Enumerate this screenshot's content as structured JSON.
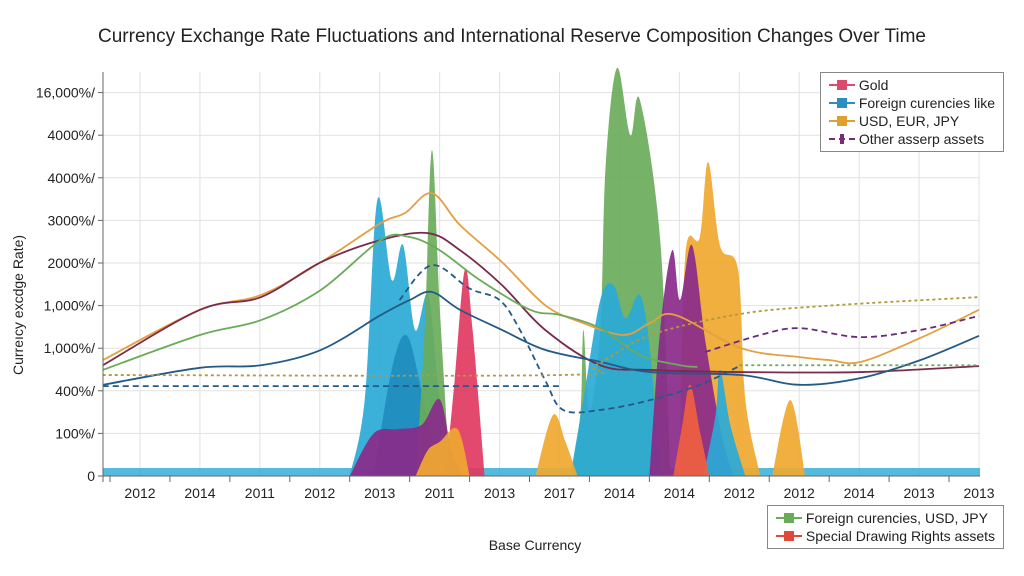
{
  "chart_data": {
    "type": "area",
    "title": "Currency Exchange Rate Fluctuations and International Reserve Composition Changes Over Time",
    "xlabel": "Base Currency",
    "ylabel": "Curreıcy excdge Rate)",
    "x_tick_labels": [
      "2012",
      "2014",
      "2011",
      "2012",
      "2013",
      "2011",
      "2013",
      "2017",
      "2014",
      "2014",
      "2012",
      "2012",
      "2014",
      "2013",
      "2013"
    ],
    "y_tick_labels": [
      "0",
      "100%/",
      "400%/",
      "1,000%/",
      "1,000%/",
      "2000%/",
      "3000%/",
      "4000%/",
      "4000%/",
      "16,000%/"
    ],
    "grid": true,
    "legends": {
      "top-right": [
        {
          "label": "Gold",
          "color": "#d94a6e"
        },
        {
          "label": "Foreign curencies like",
          "color": "#2a8fc0"
        },
        {
          "label": "USD, EUR, JPY",
          "color": "#e0a030"
        },
        {
          "label": "Other asserp assets",
          "color": "#7a2a7a",
          "style": "dashed"
        }
      ],
      "bottom-right": [
        {
          "label": "Foreign curencies, USD, JPY",
          "color": "#6aab5a"
        },
        {
          "label": "Special Drawing Rights assets",
          "color": "#e0483a"
        }
      ]
    },
    "areas": [
      {
        "color": "#2aaad6",
        "points": [
          [
            3.5,
            0
          ],
          [
            3.75,
            1.8
          ],
          [
            3.96,
            6.48
          ],
          [
            4.2,
            4.6
          ],
          [
            4.39,
            5.42
          ],
          [
            4.59,
            3.43
          ],
          [
            4.81,
            4.25
          ],
          [
            5.0,
            1.8
          ],
          [
            5.25,
            0
          ]
        ]
      },
      {
        "color": "#1f8dbf",
        "points": [
          [
            3.9,
            0
          ],
          [
            4.2,
            2.5
          ],
          [
            4.45,
            3.3
          ],
          [
            4.7,
            2.0
          ],
          [
            5.0,
            0
          ]
        ]
      },
      {
        "color": "#6aab5a",
        "points": [
          [
            4.6,
            0
          ],
          [
            4.75,
            3.43
          ],
          [
            4.87,
            7.65
          ],
          [
            5.0,
            4.0
          ],
          [
            5.17,
            0
          ]
        ]
      },
      {
        "color": "#e0395f",
        "points": [
          [
            5.1,
            0
          ],
          [
            5.25,
            2.25
          ],
          [
            5.42,
            4.84
          ],
          [
            5.55,
            3.43
          ],
          [
            5.75,
            0
          ]
        ]
      },
      {
        "color": "#6aab5a",
        "points": [
          [
            7.2,
            0
          ],
          [
            7.35,
            1.5
          ],
          [
            7.4,
            3.43
          ],
          [
            7.5,
            1.5
          ],
          [
            7.68,
            3.43
          ],
          [
            7.77,
            7.3
          ],
          [
            7.96,
            9.58
          ],
          [
            8.18,
            8.0
          ],
          [
            8.34,
            8.83
          ],
          [
            8.68,
            5.54
          ],
          [
            8.85,
            0
          ]
        ]
      },
      {
        "color": "#2aaad6",
        "points": [
          [
            7.18,
            0
          ],
          [
            7.4,
            1.8
          ],
          [
            7.68,
            4.13
          ],
          [
            7.9,
            4.48
          ],
          [
            8.1,
            3.7
          ],
          [
            8.34,
            4.25
          ],
          [
            8.51,
            2.96
          ],
          [
            8.68,
            0
          ]
        ]
      },
      {
        "color": "#f0a830",
        "points": [
          [
            9.0,
            0
          ],
          [
            9.1,
            5.2
          ],
          [
            9.34,
            5.6
          ],
          [
            9.48,
            7.37
          ],
          [
            9.68,
            5.4
          ],
          [
            9.98,
            4.84
          ],
          [
            10.1,
            1.8
          ],
          [
            10.35,
            0
          ]
        ]
      },
      {
        "color": "#f0a830",
        "points": [
          [
            10.55,
            0
          ],
          [
            10.85,
            1.78
          ],
          [
            11.1,
            0
          ]
        ]
      },
      {
        "color": "#f0a830",
        "points": [
          [
            6.6,
            0
          ],
          [
            6.89,
            1.43
          ],
          [
            7.1,
            0.8
          ],
          [
            7.3,
            0
          ]
        ]
      },
      {
        "color": "#8a2a8a",
        "points": [
          [
            8.5,
            0
          ],
          [
            8.68,
            3.43
          ],
          [
            8.88,
            5.3
          ],
          [
            9.01,
            4.13
          ],
          [
            9.21,
            5.42
          ],
          [
            9.43,
            3.2
          ],
          [
            9.7,
            1.0
          ],
          [
            9.9,
            0
          ]
        ]
      },
      {
        "color": "#8a2a8a",
        "points": [
          [
            3.5,
            0
          ],
          [
            3.9,
            1.0
          ],
          [
            4.3,
            1.1
          ],
          [
            4.7,
            1.2
          ],
          [
            5.0,
            1.8
          ],
          [
            5.2,
            0.6
          ],
          [
            5.4,
            0
          ]
        ]
      },
      {
        "color": "#2aaad6",
        "points": [
          [
            9.4,
            0
          ],
          [
            9.6,
            1.4
          ],
          [
            9.68,
            2.49
          ],
          [
            9.85,
            1.2
          ],
          [
            10.1,
            0
          ]
        ]
      },
      {
        "color": "#f06040",
        "points": [
          [
            8.9,
            0
          ],
          [
            9.05,
            1.2
          ],
          [
            9.18,
            2.14
          ],
          [
            9.35,
            1.0
          ],
          [
            9.5,
            0
          ]
        ]
      },
      {
        "color": "#f0a830",
        "points": [
          [
            4.6,
            0
          ],
          [
            4.8,
            0.6
          ],
          [
            5.0,
            0.8
          ],
          [
            5.3,
            1.1
          ],
          [
            5.5,
            0
          ]
        ]
      }
    ],
    "lines": [
      {
        "color": "#e4a040",
        "style": "solid",
        "points": [
          [
            -0.62,
            2.72
          ],
          [
            1.0,
            3.9
          ],
          [
            2.02,
            4.25
          ],
          [
            3.02,
            5.02
          ],
          [
            4.02,
            5.94
          ],
          [
            4.42,
            6.17
          ],
          [
            4.87,
            6.64
          ],
          [
            5.34,
            5.89
          ],
          [
            6.04,
            5.02
          ],
          [
            6.76,
            4.01
          ],
          [
            7.34,
            3.62
          ],
          [
            8.06,
            3.31
          ],
          [
            8.51,
            3.59
          ],
          [
            8.93,
            3.78
          ],
          [
            10.03,
            3.0
          ],
          [
            11.01,
            2.79
          ],
          [
            11.51,
            2.72
          ],
          [
            12.03,
            2.68
          ],
          [
            13.02,
            3.24
          ],
          [
            14.0,
            3.9
          ]
        ]
      },
      {
        "color": "#7a2a4a",
        "style": "solid",
        "points": [
          [
            -0.62,
            2.6
          ],
          [
            1.0,
            3.9
          ],
          [
            2.02,
            4.2
          ],
          [
            3.02,
            5.02
          ],
          [
            4.02,
            5.54
          ],
          [
            4.81,
            5.7
          ],
          [
            5.34,
            5.3
          ],
          [
            6.04,
            4.48
          ],
          [
            6.76,
            3.43
          ],
          [
            7.68,
            2.6
          ],
          [
            8.51,
            2.49
          ],
          [
            10.03,
            2.44
          ],
          [
            12.03,
            2.44
          ],
          [
            14.0,
            2.58
          ]
        ]
      },
      {
        "color": "#6aab5a",
        "style": "solid",
        "points": [
          [
            -0.62,
            2.49
          ],
          [
            1.0,
            3.31
          ],
          [
            2.02,
            3.66
          ],
          [
            3.02,
            4.37
          ],
          [
            4.02,
            5.54
          ],
          [
            4.5,
            5.61
          ],
          [
            5.0,
            5.3
          ],
          [
            5.67,
            4.6
          ],
          [
            6.51,
            3.9
          ],
          [
            7.01,
            3.78
          ],
          [
            7.68,
            3.47
          ],
          [
            8.34,
            2.84
          ],
          [
            9.01,
            2.6
          ],
          [
            9.3,
            2.56
          ]
        ]
      },
      {
        "color": "#245a86",
        "style": "solid",
        "points": [
          [
            -0.62,
            2.14
          ],
          [
            1.0,
            2.54
          ],
          [
            2.02,
            2.6
          ],
          [
            3.02,
            2.96
          ],
          [
            4.02,
            3.78
          ],
          [
            4.5,
            4.13
          ],
          [
            4.87,
            4.32
          ],
          [
            5.34,
            3.9
          ],
          [
            6.04,
            3.43
          ],
          [
            6.76,
            2.96
          ],
          [
            7.68,
            2.68
          ],
          [
            8.51,
            2.44
          ],
          [
            10.03,
            2.37
          ],
          [
            11.01,
            2.14
          ],
          [
            12.03,
            2.3
          ],
          [
            13.02,
            2.72
          ],
          [
            14.0,
            3.29
          ]
        ]
      },
      {
        "color": "#245a86",
        "style": "dashed",
        "points": [
          [
            -0.62,
            2.11
          ],
          [
            7.0,
            2.11
          ]
        ]
      },
      {
        "color": "#245a86",
        "style": "dashed",
        "points": [
          [
            4.33,
            4.13
          ],
          [
            4.87,
            4.95
          ],
          [
            5.5,
            4.4
          ],
          [
            6.0,
            4.13
          ],
          [
            6.34,
            3.43
          ],
          [
            6.76,
            2.25
          ],
          [
            7.06,
            1.55
          ],
          [
            7.68,
            1.55
          ],
          [
            8.51,
            1.78
          ],
          [
            9.34,
            2.14
          ],
          [
            10.03,
            2.6
          ]
        ]
      },
      {
        "color": "#b09a3a",
        "style": "dotted",
        "points": [
          [
            -0.62,
            2.37
          ],
          [
            7.0,
            2.37
          ],
          [
            7.6,
            2.6
          ],
          [
            8.5,
            3.3
          ],
          [
            10.0,
            3.8
          ],
          [
            11.5,
            4.0
          ],
          [
            14.0,
            4.2
          ]
        ]
      },
      {
        "color": "#6aab5a",
        "style": "dotted",
        "points": [
          [
            10.0,
            2.6
          ],
          [
            14.0,
            2.6
          ]
        ]
      },
      {
        "color": "#6a2a7a",
        "style": "dashed",
        "points": [
          [
            9.43,
            2.91
          ],
          [
            10.35,
            3.31
          ],
          [
            11.01,
            3.47
          ],
          [
            12.01,
            3.26
          ],
          [
            13.02,
            3.43
          ],
          [
            14.0,
            3.76
          ]
        ]
      }
    ]
  }
}
